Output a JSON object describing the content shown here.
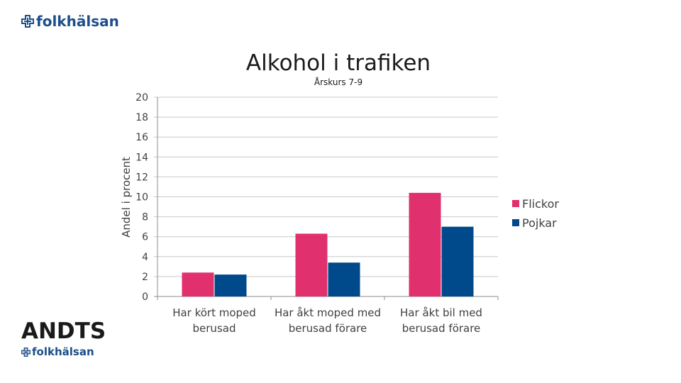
{
  "header": {
    "brand_name": "folkhälsan"
  },
  "footer": {
    "andts_label": "ANDTS",
    "brand_name": "folkhälsan"
  },
  "colors": {
    "brand": "#1d4e89",
    "flickor": "#e0306e",
    "pojkar": "#00498a"
  },
  "chart_data": {
    "type": "bar",
    "title": "Alkohol i trafiken",
    "subtitle": "Årskurs 7-9",
    "ylabel": "Andel i procent",
    "xlabel": "",
    "ylim": [
      0,
      20
    ],
    "yticks": [
      0,
      2,
      4,
      6,
      8,
      10,
      12,
      14,
      16,
      18,
      20
    ],
    "grid": true,
    "legend_position": "right",
    "categories": [
      [
        "Har kört moped",
        "berusad"
      ],
      [
        "Har åkt moped med",
        "berusad förare"
      ],
      [
        "Har åkt bil med",
        "berusad förare"
      ]
    ],
    "series": [
      {
        "name": "Flickor",
        "color": "#e0306e",
        "values": [
          2.4,
          6.3,
          10.4
        ]
      },
      {
        "name": "Pojkar",
        "color": "#00498a",
        "values": [
          2.2,
          3.4,
          7.0
        ]
      }
    ]
  }
}
